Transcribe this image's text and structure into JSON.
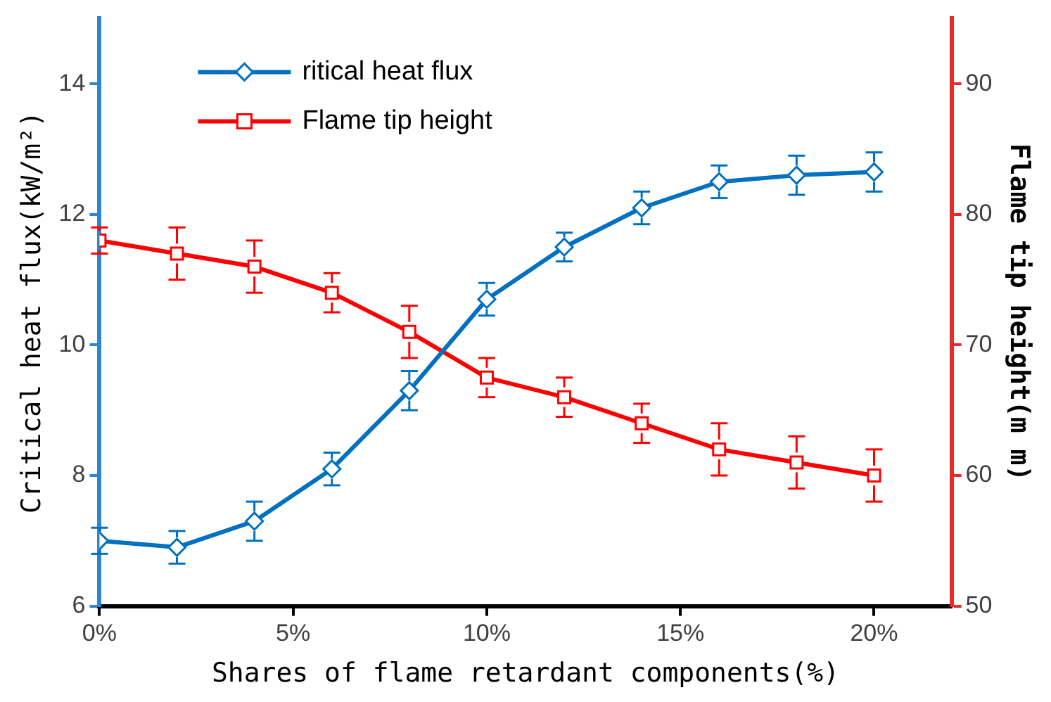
{
  "chart_data": {
    "type": "line",
    "xlabel": "Shares of flame retardant components(%)",
    "ylabel": "Critical heat flux(kW/m²)",
    "y2label": "Flame tip height(m m)",
    "x": [
      0,
      2,
      4,
      6,
      8,
      10,
      12,
      14,
      16,
      18,
      20
    ],
    "xlim": [
      0,
      22
    ],
    "xticks": [
      {
        "value": 0,
        "label": "0%"
      },
      {
        "value": 5,
        "label": "5%"
      },
      {
        "value": 10,
        "label": "10%"
      },
      {
        "value": 15,
        "label": "15%"
      },
      {
        "value": 20,
        "label": "20%"
      }
    ],
    "ylim": [
      6,
      15
    ],
    "yticks": [
      6,
      8,
      10,
      12,
      14
    ],
    "y2lim": [
      50,
      95
    ],
    "y2ticks": [
      50,
      60,
      70,
      80,
      90
    ],
    "grid": false,
    "legend": "top left",
    "line_style": "solid",
    "series": [
      {
        "name": "ritical heat flux",
        "color": "#0070c0",
        "marker": "diamond",
        "values": [
          7.0,
          6.9,
          7.3,
          8.1,
          9.3,
          10.7,
          11.5,
          12.1,
          12.5,
          12.6,
          12.65
        ],
        "errors": [
          0.2,
          0.25,
          0.3,
          0.25,
          0.3,
          0.25,
          0.22,
          0.25,
          0.25,
          0.3,
          0.3
        ]
      },
      {
        "name": "Flame tip height",
        "color": "#ff0000",
        "marker": "square",
        "axis": "y2",
        "values": [
          78,
          77,
          76,
          74,
          71,
          67.5,
          66,
          64,
          62,
          61,
          60
        ],
        "errors": [
          1,
          2,
          2,
          1.5,
          2,
          1.5,
          1.5,
          1.5,
          2,
          2,
          2
        ]
      }
    ]
  }
}
